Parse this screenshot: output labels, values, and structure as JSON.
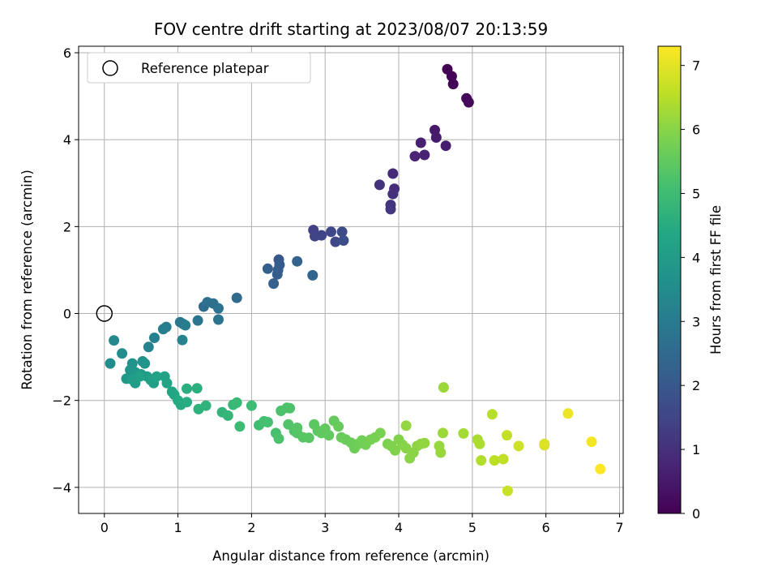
{
  "chart_data": {
    "type": "scatter",
    "title": "FOV centre drift starting at 2023/08/07 20:13:59",
    "xlabel": "Angular distance from reference (arcmin)",
    "ylabel": "Rotation from reference (arcmin)",
    "xlim": [
      -0.35,
      7.05
    ],
    "ylim": [
      -4.6,
      6.15
    ],
    "xticks": [
      0,
      1,
      2,
      3,
      4,
      5,
      6,
      7
    ],
    "yticks": [
      -4,
      -2,
      0,
      2,
      4,
      6
    ],
    "grid": true,
    "legend": {
      "position": "top-left",
      "entries": [
        "Reference platepar"
      ]
    },
    "reference_point": {
      "x": 0,
      "y": 0,
      "name": "Reference platepar"
    },
    "colorbar": {
      "label": "Hours from first FF file",
      "colormap": "viridis",
      "range": [
        0,
        7.3
      ],
      "ticks": [
        0,
        1,
        2,
        3,
        4,
        5,
        6,
        7
      ]
    },
    "points": [
      [
        4.66,
        5.62,
        0.02
      ],
      [
        4.72,
        5.46,
        0.05
      ],
      [
        4.74,
        5.28,
        0.08
      ],
      [
        4.92,
        4.95,
        0.12
      ],
      [
        4.95,
        4.86,
        0.15
      ],
      [
        4.49,
        4.22,
        0.5
      ],
      [
        4.51,
        4.05,
        0.55
      ],
      [
        4.64,
        3.86,
        0.6
      ],
      [
        4.3,
        3.93,
        0.65
      ],
      [
        4.35,
        3.65,
        0.7
      ],
      [
        4.22,
        3.62,
        0.75
      ],
      [
        3.92,
        3.22,
        0.9
      ],
      [
        3.94,
        2.87,
        0.95
      ],
      [
        3.92,
        2.75,
        1.0
      ],
      [
        3.74,
        2.96,
        1.05
      ],
      [
        3.89,
        2.5,
        1.1
      ],
      [
        3.89,
        2.4,
        1.15
      ],
      [
        2.84,
        1.92,
        1.4
      ],
      [
        2.86,
        1.78,
        1.45
      ],
      [
        2.95,
        1.8,
        1.5
      ],
      [
        3.08,
        1.88,
        1.55
      ],
      [
        3.14,
        1.65,
        1.6
      ],
      [
        3.23,
        1.88,
        1.65
      ],
      [
        3.25,
        1.68,
        1.7
      ],
      [
        2.37,
        1.24,
        2.0
      ],
      [
        2.38,
        1.12,
        2.05
      ],
      [
        2.36,
        1.0,
        2.1
      ],
      [
        2.35,
        0.9,
        2.15
      ],
      [
        2.22,
        1.03,
        2.2
      ],
      [
        2.3,
        0.69,
        2.25
      ],
      [
        2.62,
        1.2,
        2.3
      ],
      [
        2.83,
        0.88,
        2.35
      ],
      [
        1.8,
        0.36,
        2.55
      ],
      [
        1.35,
        0.16,
        2.6
      ],
      [
        1.4,
        0.26,
        2.65
      ],
      [
        1.48,
        0.23,
        2.7
      ],
      [
        1.55,
        0.12,
        2.75
      ],
      [
        1.55,
        -0.14,
        2.8
      ],
      [
        1.27,
        -0.16,
        2.85
      ],
      [
        1.03,
        -0.2,
        2.9
      ],
      [
        1.07,
        -0.24,
        2.95
      ],
      [
        1.1,
        -0.27,
        3.0
      ],
      [
        0.84,
        -0.31,
        3.05
      ],
      [
        0.8,
        -0.36,
        3.1
      ],
      [
        0.68,
        -0.56,
        3.15
      ],
      [
        0.6,
        -0.77,
        3.2
      ],
      [
        1.06,
        -0.61,
        3.25
      ],
      [
        0.13,
        -0.62,
        3.4
      ],
      [
        0.24,
        -0.92,
        3.5
      ],
      [
        0.08,
        -1.15,
        3.55
      ],
      [
        0.38,
        -1.15,
        3.7
      ],
      [
        0.52,
        -1.1,
        3.72
      ],
      [
        0.55,
        -1.15,
        3.75
      ],
      [
        0.35,
        -1.3,
        3.8
      ],
      [
        0.42,
        -1.35,
        3.85
      ],
      [
        0.3,
        -1.5,
        3.9
      ],
      [
        0.5,
        -1.4,
        3.95
      ],
      [
        0.42,
        -1.6,
        4.0
      ],
      [
        0.38,
        -1.52,
        4.02
      ],
      [
        0.58,
        -1.45,
        4.05
      ],
      [
        0.63,
        -1.53,
        4.1
      ],
      [
        0.67,
        -1.6,
        4.12
      ],
      [
        0.48,
        -1.45,
        4.15
      ],
      [
        0.71,
        -1.45,
        4.18
      ],
      [
        0.82,
        -1.45,
        4.2
      ],
      [
        0.85,
        -1.6,
        4.25
      ],
      [
        0.92,
        -1.8,
        4.3
      ],
      [
        0.95,
        -1.87,
        4.35
      ],
      [
        1.0,
        -2.0,
        4.4
      ],
      [
        1.04,
        -2.1,
        4.45
      ],
      [
        1.12,
        -2.04,
        4.5
      ],
      [
        1.12,
        -1.73,
        4.55
      ],
      [
        1.26,
        -1.72,
        4.6
      ],
      [
        1.28,
        -2.2,
        4.65
      ],
      [
        1.38,
        -2.12,
        4.7
      ],
      [
        1.6,
        -2.27,
        4.75
      ],
      [
        1.68,
        -2.35,
        4.8
      ],
      [
        1.75,
        -2.1,
        4.85
      ],
      [
        1.8,
        -2.05,
        4.9
      ],
      [
        1.84,
        -2.6,
        4.95
      ],
      [
        2.0,
        -2.12,
        5.0
      ],
      [
        2.1,
        -2.57,
        5.05
      ],
      [
        2.17,
        -2.48,
        5.1
      ],
      [
        2.22,
        -2.5,
        5.12
      ],
      [
        2.33,
        -2.75,
        5.15
      ],
      [
        2.37,
        -2.88,
        5.18
      ],
      [
        2.4,
        -2.24,
        5.2
      ],
      [
        2.48,
        -2.17,
        5.22
      ],
      [
        2.52,
        -2.18,
        5.25
      ],
      [
        2.5,
        -2.55,
        5.28
      ],
      [
        2.58,
        -2.7,
        5.3
      ],
      [
        2.62,
        -2.75,
        5.32
      ],
      [
        2.62,
        -2.63,
        5.35
      ],
      [
        2.7,
        -2.85,
        5.38
      ],
      [
        2.78,
        -2.86,
        5.4
      ],
      [
        2.85,
        -2.55,
        5.42
      ],
      [
        2.9,
        -2.7,
        5.45
      ],
      [
        2.95,
        -2.75,
        5.48
      ],
      [
        3.0,
        -2.65,
        5.5
      ],
      [
        3.05,
        -2.8,
        5.52
      ],
      [
        3.12,
        -2.47,
        5.55
      ],
      [
        3.18,
        -2.6,
        5.58
      ],
      [
        3.22,
        -2.85,
        5.6
      ],
      [
        3.28,
        -2.9,
        5.62
      ],
      [
        3.35,
        -2.97,
        5.65
      ],
      [
        3.4,
        -3.1,
        5.68
      ],
      [
        3.45,
        -3.0,
        5.7
      ],
      [
        3.5,
        -2.92,
        5.72
      ],
      [
        3.55,
        -3.02,
        5.75
      ],
      [
        3.62,
        -2.9,
        5.78
      ],
      [
        3.68,
        -2.85,
        5.8
      ],
      [
        3.75,
        -2.75,
        5.82
      ],
      [
        3.85,
        -3.0,
        5.85
      ],
      [
        3.9,
        -3.05,
        5.88
      ],
      [
        3.95,
        -3.15,
        5.9
      ],
      [
        4.0,
        -2.9,
        5.92
      ],
      [
        4.05,
        -3.02,
        5.95
      ],
      [
        4.1,
        -3.1,
        5.98
      ],
      [
        4.15,
        -3.33,
        6.0
      ],
      [
        4.2,
        -3.2,
        6.02
      ],
      [
        4.25,
        -3.05,
        6.05
      ],
      [
        4.3,
        -3.0,
        6.08
      ],
      [
        4.35,
        -2.98,
        6.1
      ],
      [
        4.1,
        -2.58,
        6.12
      ],
      [
        4.55,
        -3.05,
        6.15
      ],
      [
        4.57,
        -3.2,
        6.18
      ],
      [
        4.6,
        -2.75,
        6.2
      ],
      [
        4.61,
        -1.7,
        6.22
      ],
      [
        4.88,
        -2.76,
        6.3
      ],
      [
        5.07,
        -2.9,
        6.35
      ],
      [
        5.1,
        -3.0,
        6.4
      ],
      [
        5.12,
        -3.38,
        6.45
      ],
      [
        5.27,
        -2.32,
        6.5
      ],
      [
        5.3,
        -3.38,
        6.55
      ],
      [
        5.42,
        -3.35,
        6.6
      ],
      [
        5.47,
        -2.8,
        6.65
      ],
      [
        5.48,
        -4.08,
        6.7
      ],
      [
        5.63,
        -3.05,
        6.75
      ],
      [
        5.98,
        -3.0,
        6.9
      ],
      [
        5.98,
        -3.03,
        6.92
      ],
      [
        6.3,
        -2.3,
        7.1
      ],
      [
        6.62,
        -2.95,
        7.2
      ],
      [
        6.74,
        -3.58,
        7.3
      ]
    ]
  }
}
